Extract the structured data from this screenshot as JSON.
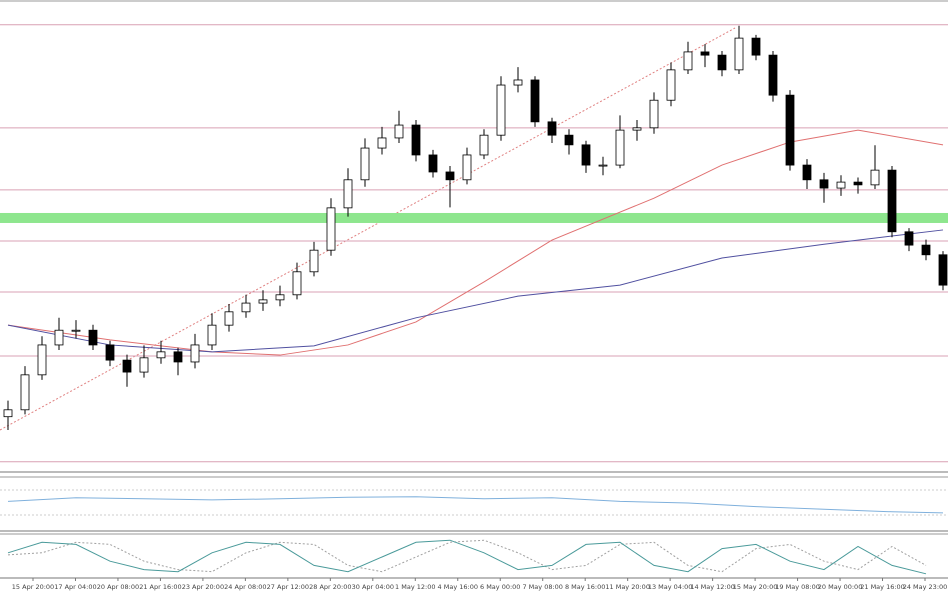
{
  "chart_data": {
    "type": "candlestick",
    "open": [
      10.5,
      12.0,
      19.6,
      26.1,
      29.3,
      29.3,
      26.1,
      22.8,
      20.2,
      23.3,
      24.6,
      22.4,
      26.1,
      30.4,
      33.3,
      35.2,
      35.9,
      37.0,
      42.0,
      46.7,
      55.9,
      62.0,
      68.9,
      71.1,
      73.9,
      67.4,
      63.7,
      62.0,
      67.4,
      71.7,
      82.6,
      83.7,
      74.6,
      71.7,
      69.6,
      65.2,
      65.2,
      72.8,
      73.3,
      79.3,
      85.9,
      89.8,
      89.1,
      85.9,
      92.8,
      89.1,
      80.4,
      65.2,
      62.0,
      60.2,
      61.5,
      60.9,
      64.1,
      50.7,
      47.8,
      45.7
    ],
    "high": [
      14.0,
      21.5,
      28.0,
      32.0,
      31.5,
      30.5,
      27.0,
      24.0,
      26.0,
      27.0,
      25.5,
      28.5,
      33.0,
      35.0,
      37.0,
      38.0,
      39.0,
      44.0,
      48.5,
      58.0,
      64.5,
      71.0,
      73.5,
      77.0,
      75.0,
      68.5,
      65.0,
      69.0,
      73.0,
      84.5,
      86.5,
      84.5,
      75.5,
      73.0,
      70.5,
      67.0,
      76.0,
      75.0,
      81.0,
      87.5,
      92.0,
      91.5,
      90.0,
      95.5,
      93.5,
      90.0,
      81.5,
      66.5,
      63.5,
      63.0,
      62.5,
      69.5,
      65.0,
      51.5,
      49.0,
      46.5
    ],
    "low": [
      7.6,
      11.0,
      18.5,
      25.0,
      27.5,
      25.0,
      21.5,
      17.0,
      19.0,
      22.0,
      19.5,
      21.0,
      25.0,
      29.0,
      32.0,
      33.5,
      34.5,
      36.0,
      41.0,
      45.5,
      54.0,
      60.5,
      67.5,
      70.0,
      66.0,
      62.5,
      56.0,
      61.0,
      66.5,
      70.5,
      81.0,
      73.5,
      70.0,
      67.5,
      63.5,
      63.0,
      64.5,
      70.5,
      72.0,
      78.0,
      85.0,
      86.5,
      84.5,
      85.0,
      88.0,
      79.0,
      64.0,
      60.0,
      57.0,
      58.5,
      59.0,
      60.0,
      49.5,
      46.5,
      44.5,
      38.0
    ],
    "close": [
      12.0,
      19.6,
      26.1,
      29.3,
      29.3,
      26.1,
      22.8,
      20.2,
      23.3,
      24.6,
      22.4,
      26.1,
      30.4,
      33.3,
      35.2,
      35.9,
      37.0,
      42.0,
      46.7,
      55.9,
      62.0,
      68.9,
      71.1,
      73.9,
      67.4,
      63.7,
      62.0,
      67.4,
      71.7,
      82.6,
      83.7,
      74.6,
      71.7,
      69.6,
      65.2,
      65.2,
      72.8,
      73.3,
      79.3,
      85.9,
      89.8,
      89.1,
      85.9,
      92.8,
      89.1,
      80.4,
      65.2,
      62.0,
      60.2,
      61.5,
      60.9,
      64.1,
      50.7,
      47.8,
      45.7,
      39.1
    ],
    "ylim": [
      0,
      100
    ],
    "levels": {
      "values": [
        95.7,
        73.3,
        59.8,
        48.7,
        37.6,
        23.7,
        0.7
      ],
      "color": "#d9a0b4"
    },
    "zone": {
      "value": 53.7,
      "color": "#8ee68e"
    },
    "moving_averages": [
      {
        "color": "#e07070",
        "x": [
          0,
          6,
          12,
          16,
          20,
          24,
          28,
          32,
          38,
          42,
          46,
          50,
          55
        ],
        "values": [
          30.4,
          27.2,
          24.6,
          23.9,
          26.1,
          31.1,
          39.8,
          48.9,
          58.0,
          65.2,
          70.2,
          72.8,
          69.6
        ]
      },
      {
        "color": "#5050a0",
        "x": [
          0,
          6,
          12,
          18,
          24,
          30,
          36,
          42,
          48,
          55
        ],
        "values": [
          30.4,
          26.1,
          24.6,
          25.9,
          32.0,
          36.7,
          39.1,
          45.0,
          48.0,
          51.1
        ]
      }
    ],
    "rsi": {
      "color": "#7fb0dc",
      "ylim": [
        0,
        100
      ],
      "x": [
        0,
        4,
        8,
        12,
        16,
        20,
        24,
        28,
        32,
        36,
        40,
        44,
        48,
        52,
        55
      ],
      "values": [
        55,
        62,
        60,
        58,
        60,
        63,
        64,
        60,
        62,
        55,
        52,
        45,
        40,
        35,
        33
      ]
    },
    "stochastic": {
      "ylim": [
        0,
        100
      ],
      "main_color": "#4a9a9a",
      "signal_color": "#a0a0a0",
      "x": [
        0,
        2,
        4,
        6,
        8,
        10,
        12,
        14,
        16,
        18,
        20,
        22,
        24,
        26,
        28,
        30,
        32,
        34,
        36,
        38,
        40,
        42,
        44,
        46,
        48,
        50,
        52,
        54
      ],
      "main": [
        60,
        85,
        80,
        40,
        20,
        15,
        60,
        85,
        80,
        30,
        15,
        50,
        85,
        90,
        60,
        20,
        30,
        80,
        85,
        30,
        15,
        70,
        80,
        40,
        20,
        75,
        30,
        10
      ],
      "signal": [
        55,
        60,
        85,
        80,
        40,
        20,
        15,
        60,
        85,
        80,
        30,
        15,
        50,
        85,
        90,
        60,
        20,
        30,
        80,
        85,
        30,
        15,
        70,
        80,
        40,
        20,
        75,
        30
      ]
    },
    "time_labels": [
      "15 Apr 20:00",
      "17 Apr 04:00",
      "20 Apr 08:00",
      "21 Apr 16:00",
      "23 Apr 20:00",
      "24 Apr 08:00",
      "27 Apr 12:00",
      "28 Apr 20:00",
      "30 Apr 04:00",
      "1 May 12:00",
      "4 May 16:00",
      "6 May 00:00",
      "7 May 08:00",
      "8 May 16:00",
      "11 May 20:00",
      "13 May 04:00",
      "14 May 12:00",
      "15 May 20:00",
      "19 May 08:00",
      "20 May 00:00",
      "21 May 16:00",
      "24 May 23:00"
    ]
  }
}
